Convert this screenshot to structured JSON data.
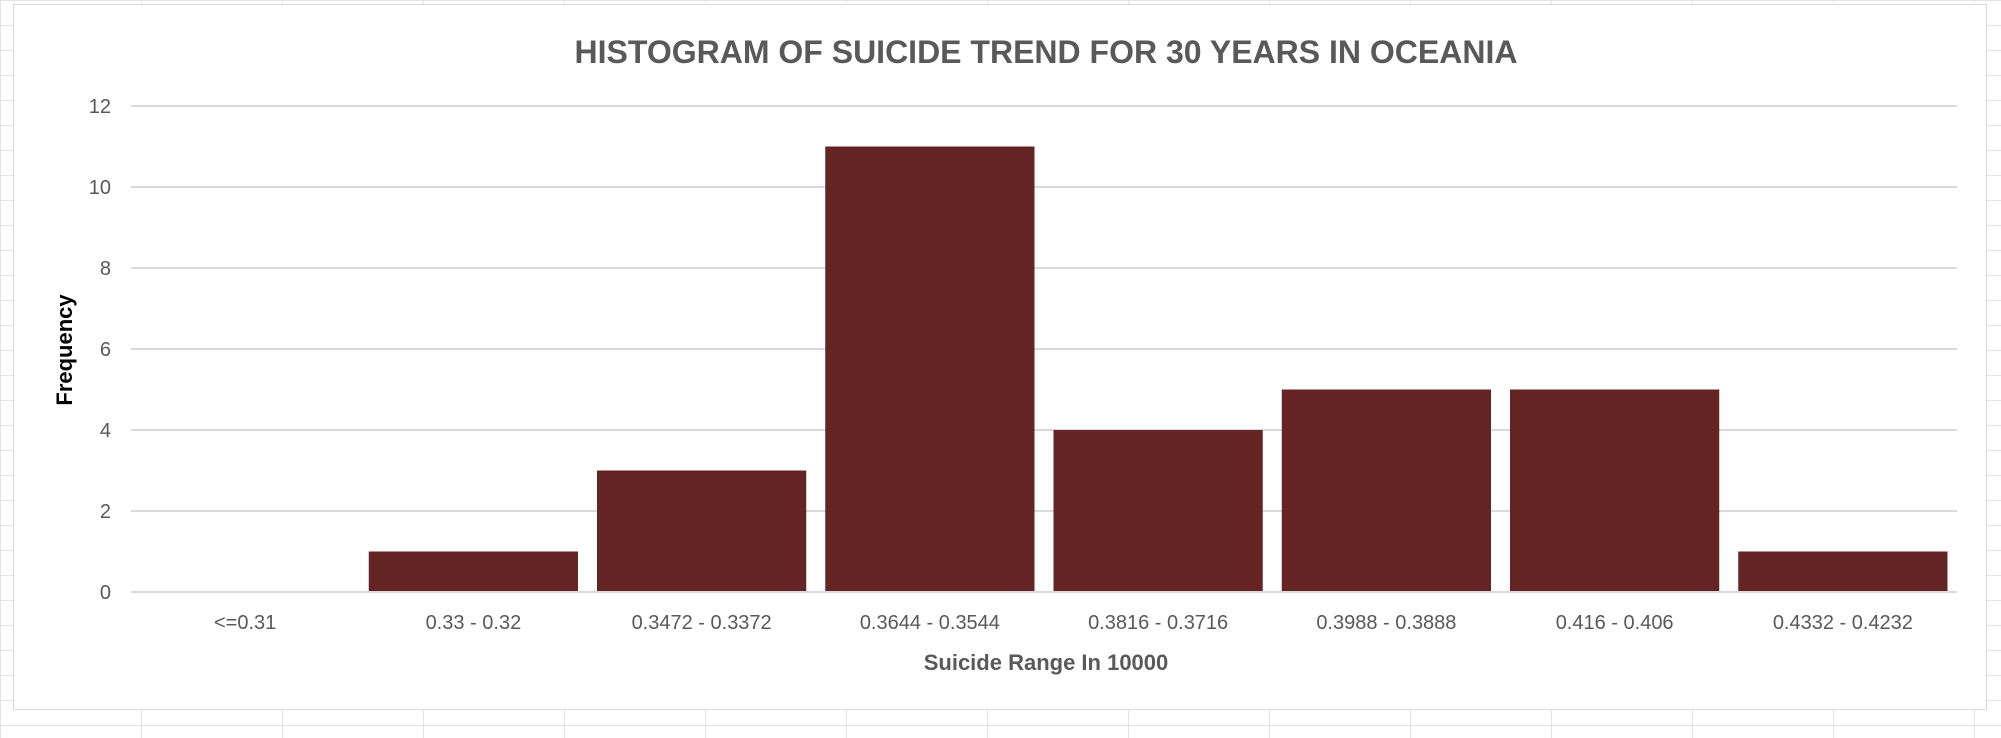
{
  "chart_data": {
    "type": "bar",
    "title": "HISTOGRAM OF SUICIDE TREND FOR 30 YEARS IN OCEANIA",
    "xlabel": "Suicide Range In 10000",
    "ylabel": "Frequency",
    "categories": [
      "<=0.31",
      "0.33 - 0.32",
      "0.3472 - 0.3372",
      "0.3644 - 0.3544",
      "0.3816 - 0.3716",
      "0.3988 - 0.3888",
      "0.416 - 0.406",
      "0.4332 - 0.4232"
    ],
    "values": [
      0,
      1,
      3,
      11,
      4,
      5,
      5,
      1
    ],
    "ylim": [
      0,
      12
    ],
    "yticks": [
      "0",
      "2",
      "4",
      "6",
      "8",
      "10",
      "12"
    ],
    "grid": true,
    "legend": "none",
    "bar_color": "#632423",
    "grid_color": "#d9d9d9"
  }
}
